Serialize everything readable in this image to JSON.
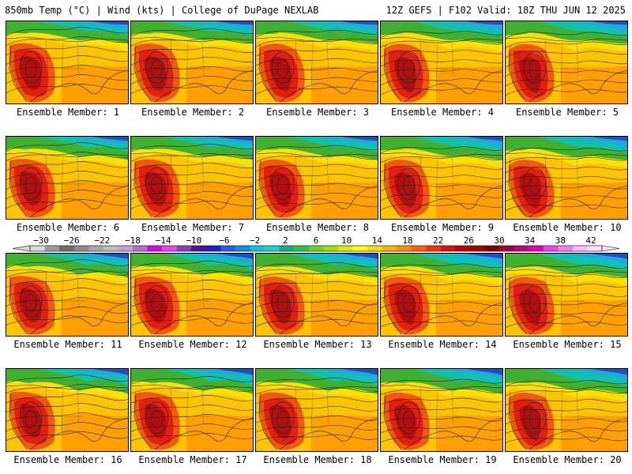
{
  "header": {
    "left": "850mb Temp (°C) | Wind (kts) | College of DuPage NEXLAB",
    "right": "12Z GEFS | F102 Valid: 18Z THU JUN 12 2025"
  },
  "panels": [
    {
      "label": "Ensemble Member: 1"
    },
    {
      "label": "Ensemble Member: 2"
    },
    {
      "label": "Ensemble Member: 3"
    },
    {
      "label": "Ensemble Member: 4"
    },
    {
      "label": "Ensemble Member: 5"
    },
    {
      "label": "Ensemble Member: 6"
    },
    {
      "label": "Ensemble Member: 7"
    },
    {
      "label": "Ensemble Member: 8"
    },
    {
      "label": "Ensemble Member: 9"
    },
    {
      "label": "Ensemble Member: 10"
    },
    {
      "label": "Ensemble Member: 11"
    },
    {
      "label": "Ensemble Member: 12"
    },
    {
      "label": "Ensemble Member: 13"
    },
    {
      "label": "Ensemble Member: 14"
    },
    {
      "label": "Ensemble Member: 15"
    },
    {
      "label": "Ensemble Member: 16"
    },
    {
      "label": "Ensemble Member: 17"
    },
    {
      "label": "Ensemble Member: 18"
    },
    {
      "label": "Ensemble Member: 19"
    },
    {
      "label": "Ensemble Member: 20"
    }
  ],
  "colorbar": {
    "labels": [
      "−30",
      "−26",
      "−22",
      "−18",
      "−14",
      "−10",
      "−6",
      "−2",
      "2",
      "6",
      "10",
      "14",
      "18",
      "22",
      "26",
      "30",
      "34",
      "38",
      "42"
    ],
    "colors": [
      "#d8d8d8",
      "#9a9a9a",
      "#6e6e6e",
      "#8c8c8c",
      "#a8a8a8",
      "#bcbcbc",
      "#c8a0d8",
      "#b070d0",
      "#e000e0",
      "#f040f0",
      "#8040c0",
      "#5010a0",
      "#2020c0",
      "#2060e0",
      "#1090e0",
      "#10c0e0",
      "#20d0c0",
      "#10b080",
      "#30c040",
      "#70d020",
      "#a0e000",
      "#d0f000",
      "#ffff00",
      "#ffd800",
      "#ffb000",
      "#ff9000",
      "#ff6000",
      "#ff3000",
      "#e01010",
      "#c00000",
      "#a00000",
      "#800000",
      "#a00040",
      "#c00080",
      "#e000c0",
      "#f040f0",
      "#f080f0",
      "#f8c0f8",
      "#ffe0ff"
    ]
  },
  "colors": {
    "hot_core": "#b01010",
    "red": "#e02010",
    "orange_red": "#f05a10",
    "orange": "#ffa000",
    "yellow_orange": "#ffc400",
    "yellow": "#ffe000",
    "green": "#40b030",
    "teal": "#10c0b0",
    "cyan": "#20a8e0",
    "blue": "#2050c0"
  }
}
